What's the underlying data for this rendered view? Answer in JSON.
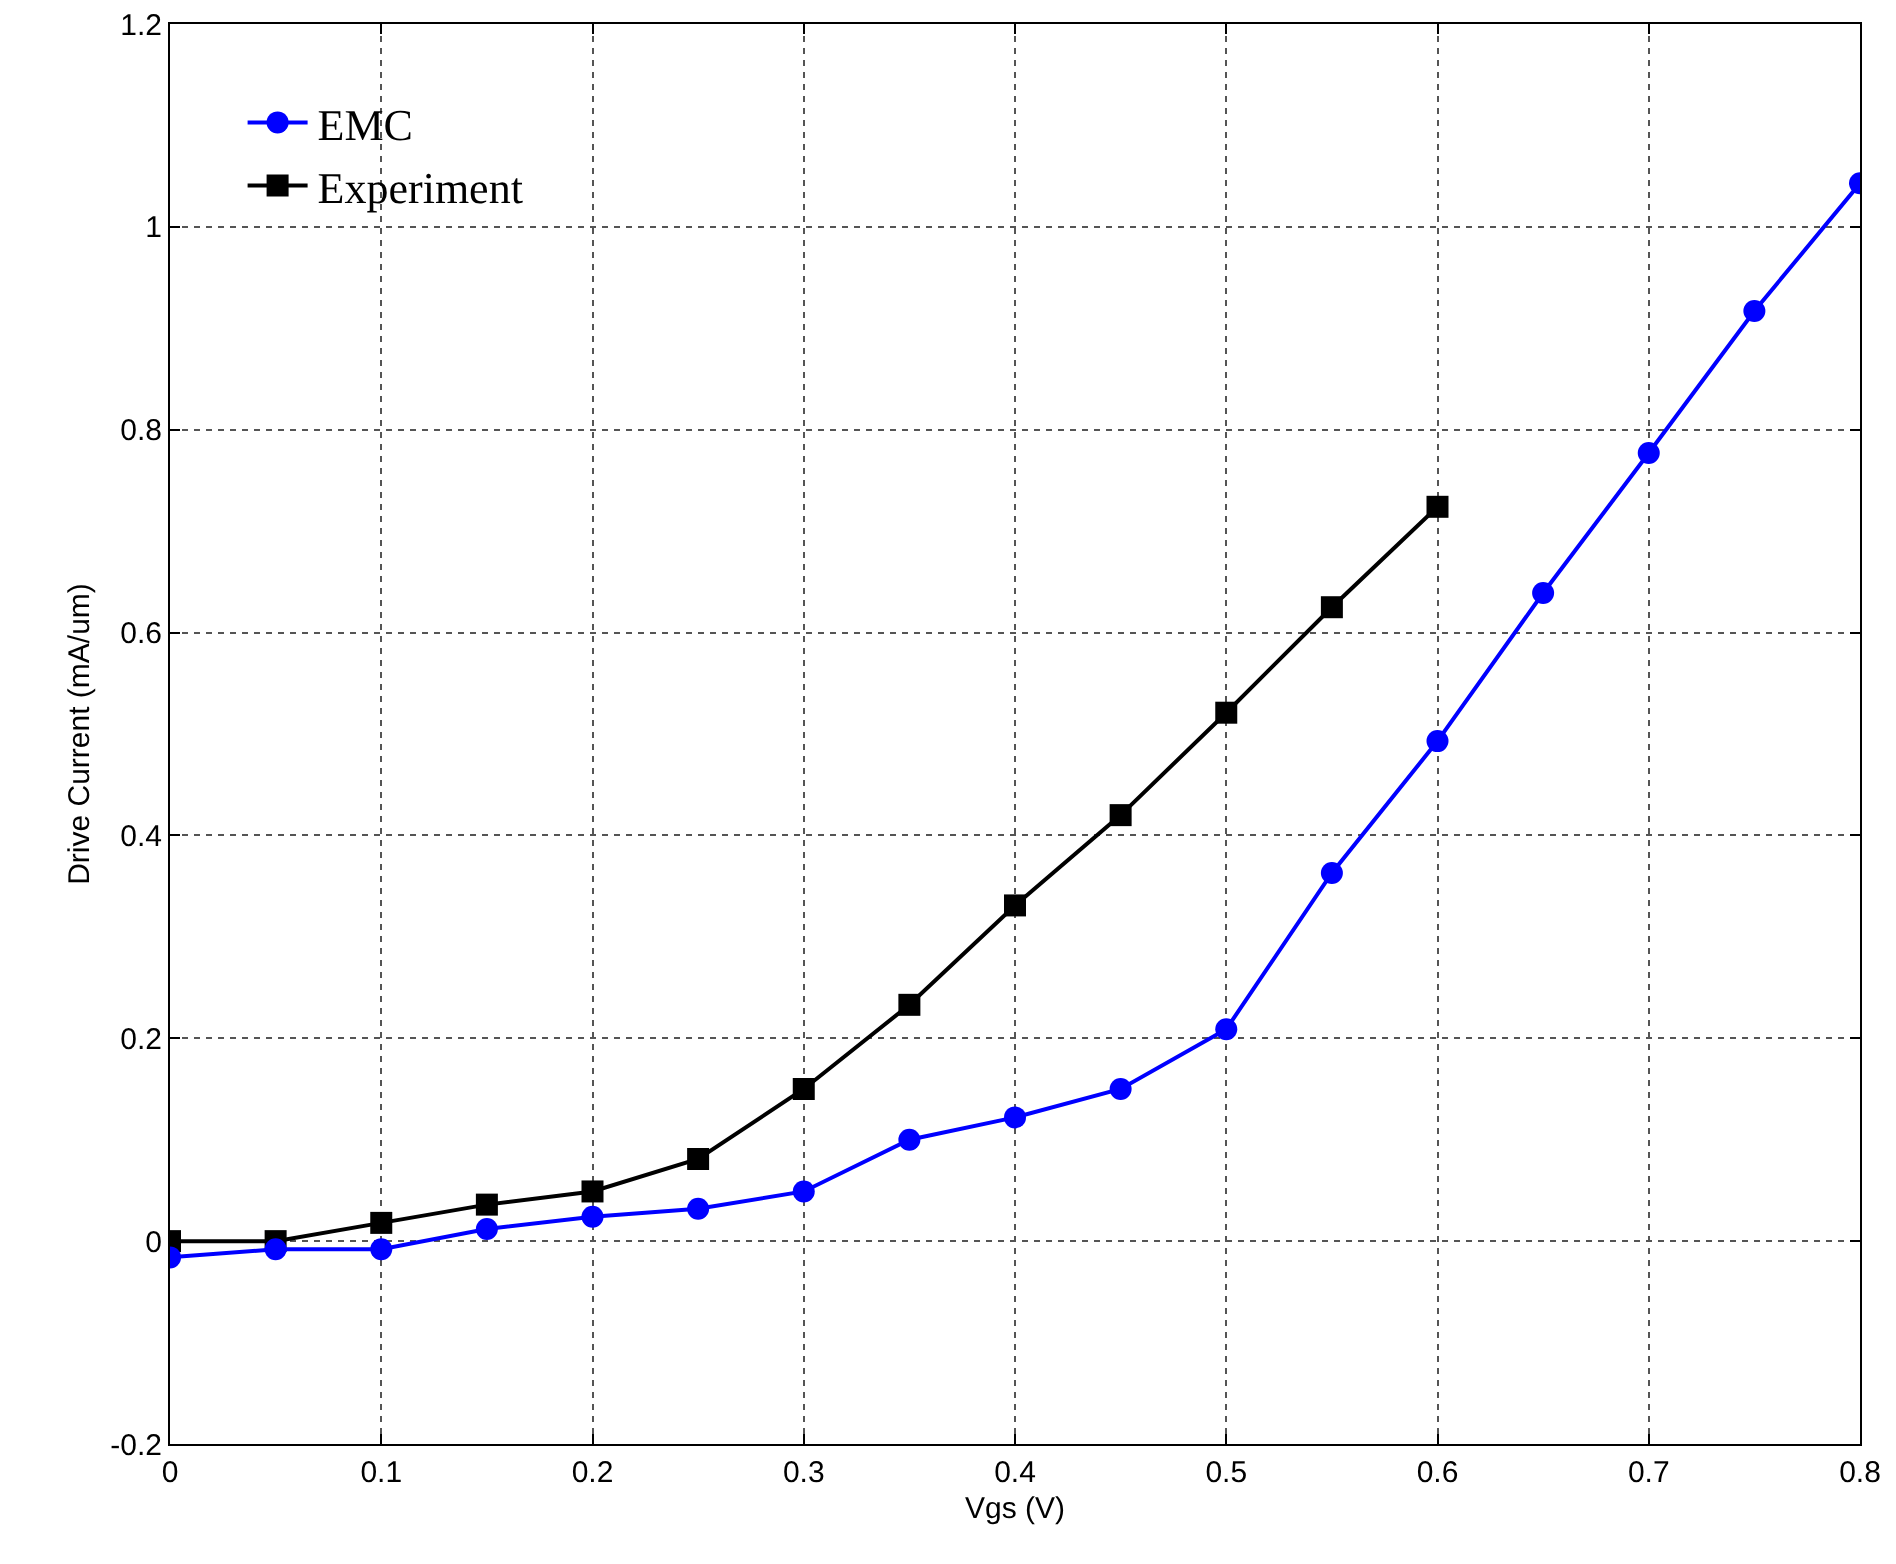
{
  "chart_data": {
    "type": "line",
    "xlabel": "Vgs (V)",
    "ylabel": "Drive Current (mA/um)",
    "x": [
      0,
      0.05,
      0.1,
      0.15,
      0.2,
      0.25,
      0.3,
      0.35,
      0.4,
      0.45,
      0.5,
      0.55,
      0.6,
      0.65,
      0.7,
      0.75,
      0.8
    ],
    "series": [
      {
        "name": "EMC",
        "color": "#0000ff",
        "marker": "circle",
        "values": [
          -0.016,
          -0.008,
          -0.008,
          0.012,
          0.024,
          0.032,
          0.049,
          0.1,
          0.122,
          0.15,
          0.209,
          0.363,
          0.493,
          0.639,
          0.777,
          0.917,
          1.043
        ]
      },
      {
        "name": "Experiment",
        "color": "#000000",
        "marker": "square",
        "values": [
          0,
          0,
          0.018,
          0.036,
          0.049,
          0.081,
          0.15,
          0.233,
          0.331,
          0.42,
          0.521,
          0.625,
          0.724,
          null,
          null,
          null,
          null
        ]
      }
    ],
    "xlim": [
      0,
      0.8
    ],
    "xticks": [
      0,
      0.1,
      0.2,
      0.3,
      0.4,
      0.5,
      0.6,
      0.7,
      0.8
    ],
    "ylim": [
      -0.2,
      1.2
    ],
    "yticks": [
      -0.2,
      0,
      0.2,
      0.4,
      0.6,
      0.8,
      1,
      1.2
    ],
    "grid": true,
    "legend": "top left",
    "line_style": "solid"
  }
}
